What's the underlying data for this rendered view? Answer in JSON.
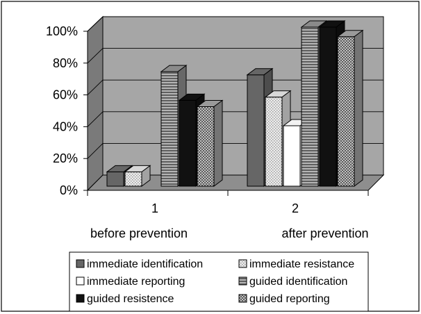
{
  "chart_data": {
    "type": "bar",
    "categories": [
      "1",
      "2"
    ],
    "category_sublabels": [
      "before prevention",
      "after prevention"
    ],
    "yticks": [
      "0%",
      "20%",
      "40%",
      "60%",
      "80%",
      "100%"
    ],
    "ylim": [
      0,
      100
    ],
    "grid": true,
    "legend_position": "bottom",
    "series": [
      {
        "name": "immediate identification",
        "values": [
          9,
          70
        ],
        "pattern": "dark-gray",
        "color": "#666666"
      },
      {
        "name": "immediate resistance",
        "values": [
          9,
          56
        ],
        "pattern": "light-dots",
        "color": "#d8d8d8"
      },
      {
        "name": "immediate reporting",
        "values": [
          0,
          38
        ],
        "pattern": "white",
        "color": "#ffffff"
      },
      {
        "name": "guided identification",
        "values": [
          72,
          100
        ],
        "pattern": "h-stripes",
        "color": "#8a8a8a"
      },
      {
        "name": "guided resistence",
        "values": [
          54,
          100
        ],
        "pattern": "black",
        "color": "#111111"
      },
      {
        "name": "guided reporting",
        "values": [
          50,
          94
        ],
        "pattern": "checker",
        "color": "#9a9a9a"
      }
    ]
  }
}
